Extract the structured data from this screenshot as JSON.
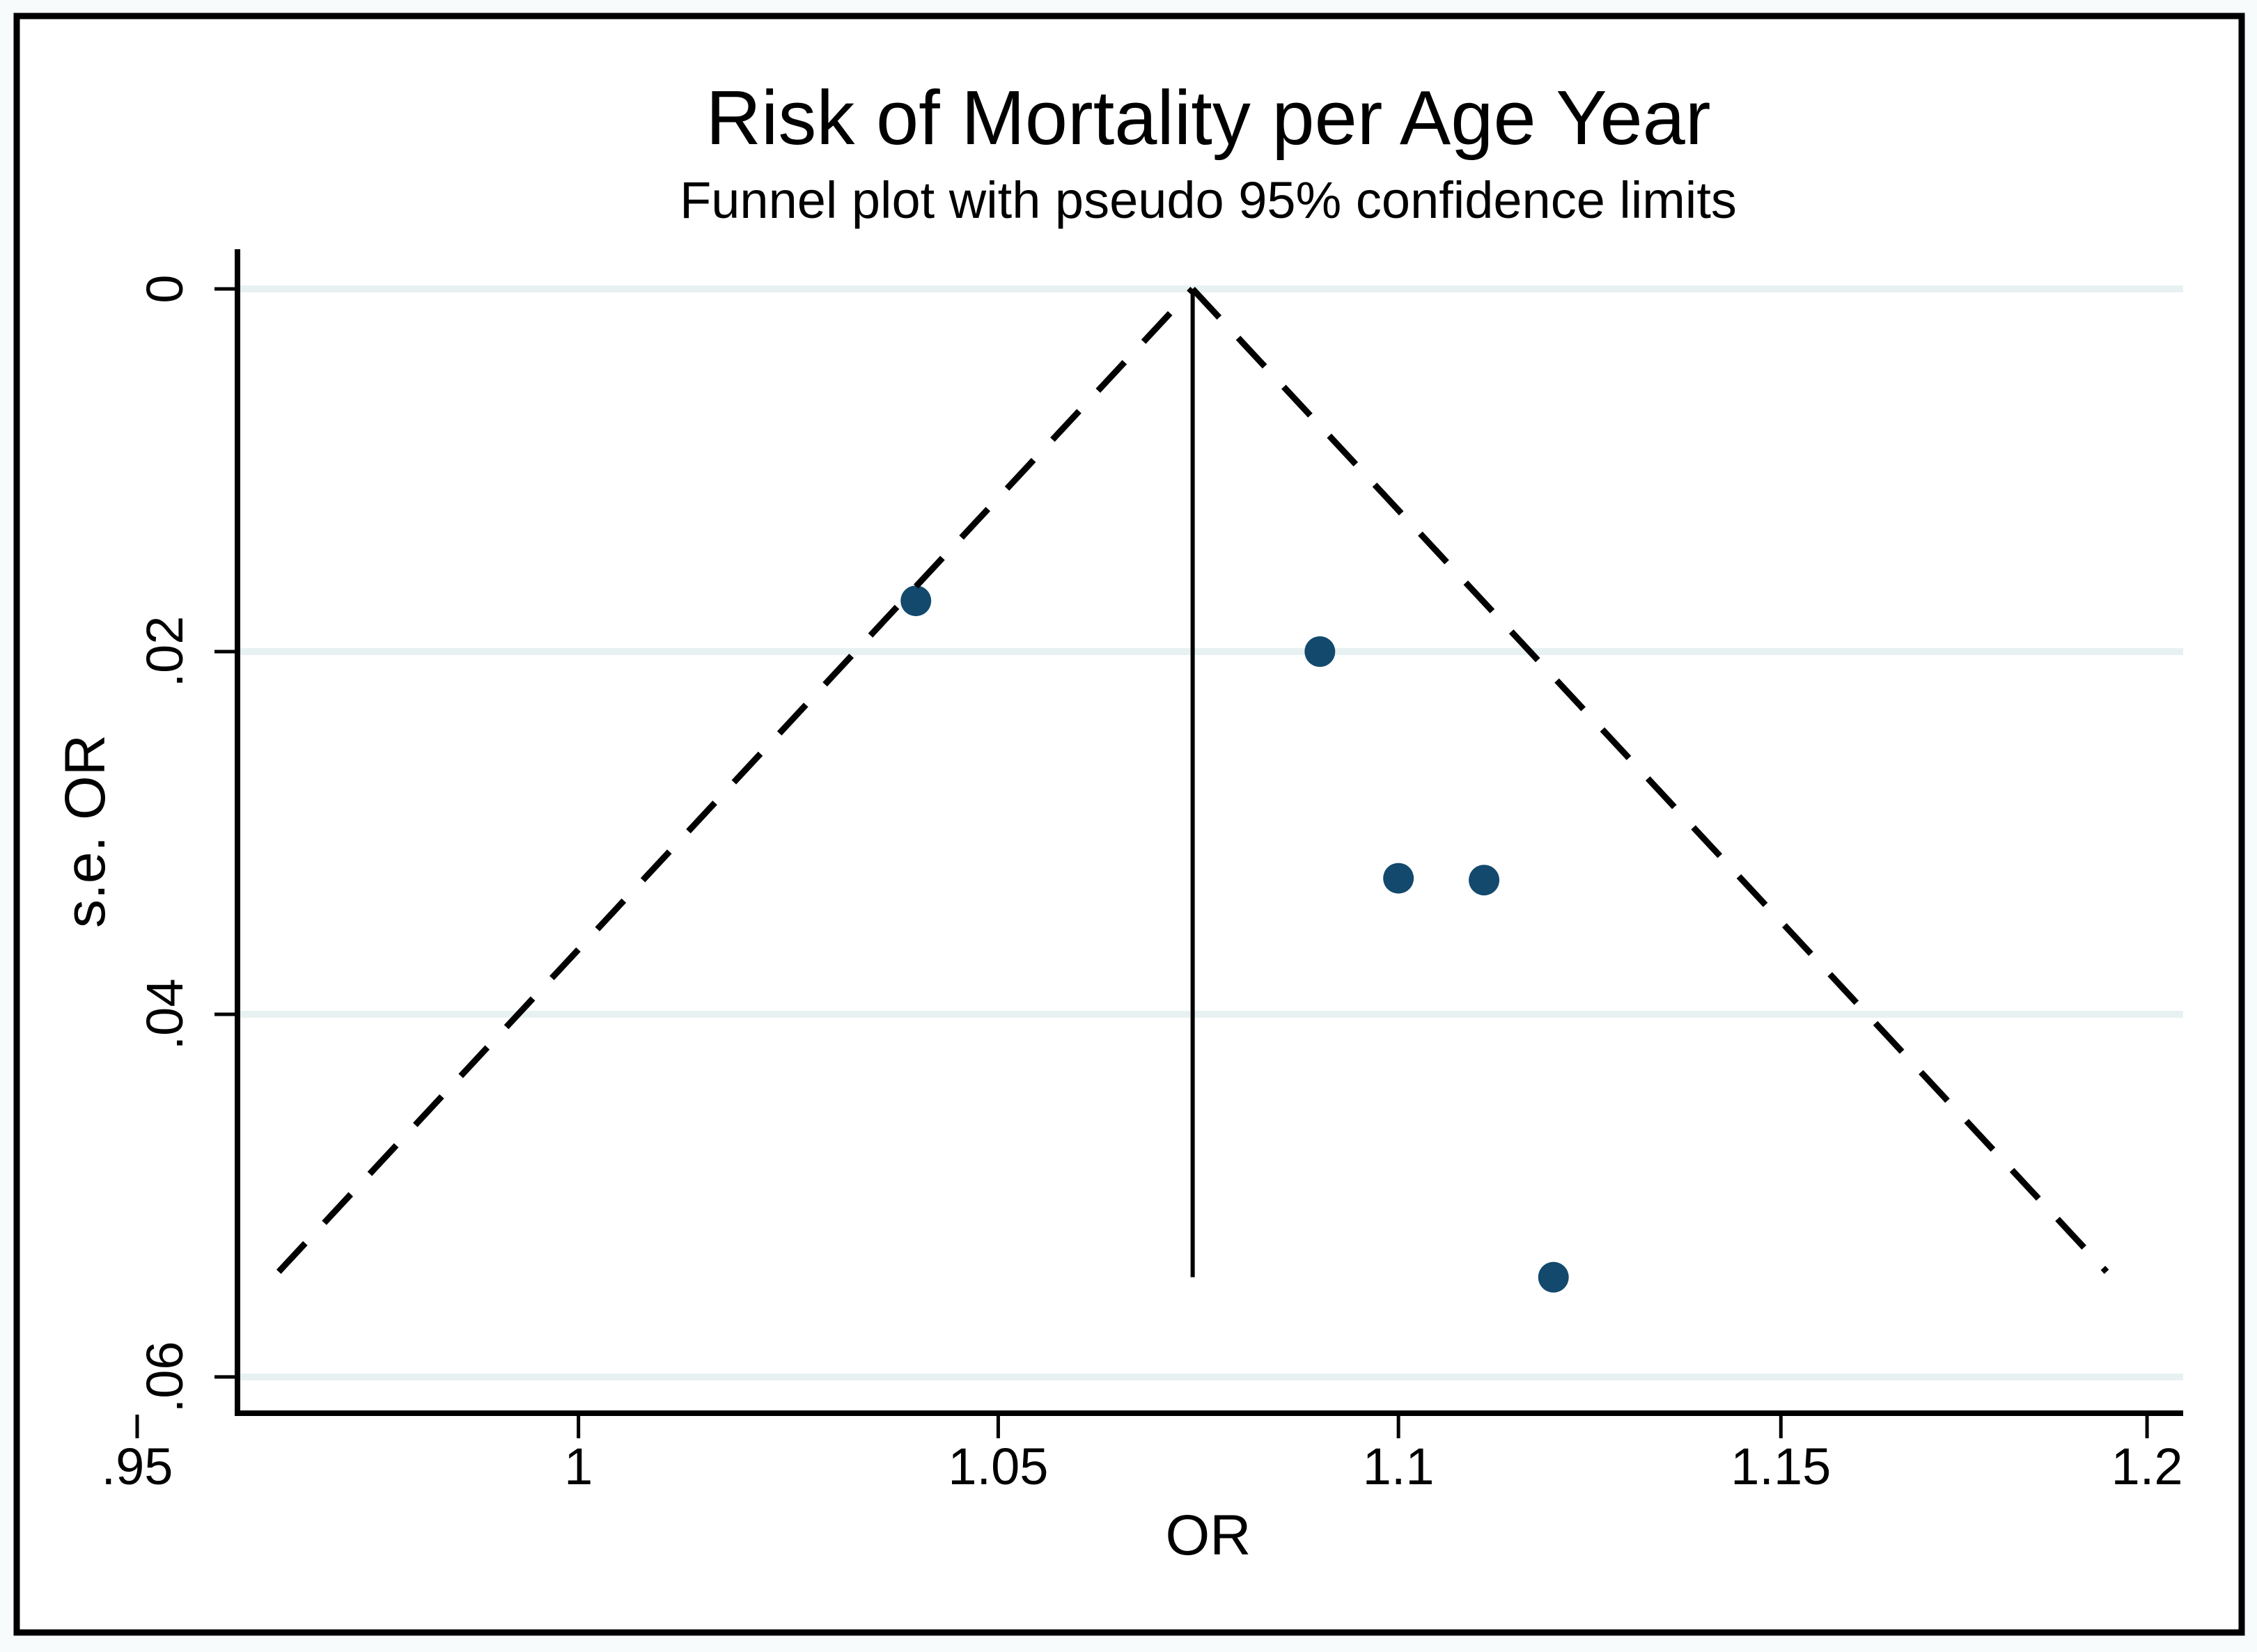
{
  "figure": {
    "title": "Risk of Mortality per Age Year",
    "subtitle": "Funnel plot with pseudo 95% confidence limits"
  },
  "chart_data": {
    "type": "scatter",
    "subtype": "funnel-plot",
    "title": "Risk of Mortality per Age Year",
    "subtitle": "Funnel plot with pseudo 95% confidence limits",
    "xlabel": "OR",
    "ylabel": "s.e. OR",
    "x_scale": "log",
    "y_inverted": true,
    "grid": true,
    "legend": null,
    "x_tick_values": [
      0.95,
      1,
      1.05,
      1.1,
      1.15,
      1.2
    ],
    "x_tick_labels": [
      ".95",
      "1",
      "1.05",
      "1.1",
      "1.15",
      "1.2"
    ],
    "y_tick_values": [
      0,
      0.02,
      0.04,
      0.06
    ],
    "y_tick_labels": [
      "0",
      ".02",
      ".04",
      ".06"
    ],
    "x_axis_range_log_or": [
      -0.039636,
      0.186523
    ],
    "y_axis_range_se": [
      -0.00219,
      0.062
    ],
    "points": [
      {
        "or": 1.04,
        "se": 0.0172
      },
      {
        "or": 1.09,
        "se": 0.02
      },
      {
        "or": 1.1,
        "se": 0.0325
      },
      {
        "or": 1.111,
        "se": 0.0326
      },
      {
        "or": 1.12,
        "se": 0.0545
      }
    ],
    "pooled_or": 1.074,
    "confidence_limits": {
      "z": 1.96,
      "se_max": 0.0542,
      "level_pct": 95
    },
    "colors": {
      "point": "#12496d",
      "gridline": "#e8f1f1",
      "axis": "#000000",
      "funnel_line": "#000000",
      "plot_bg": "#ffffff",
      "outer_bg": "#f7fbfc",
      "border": "#000000"
    }
  }
}
